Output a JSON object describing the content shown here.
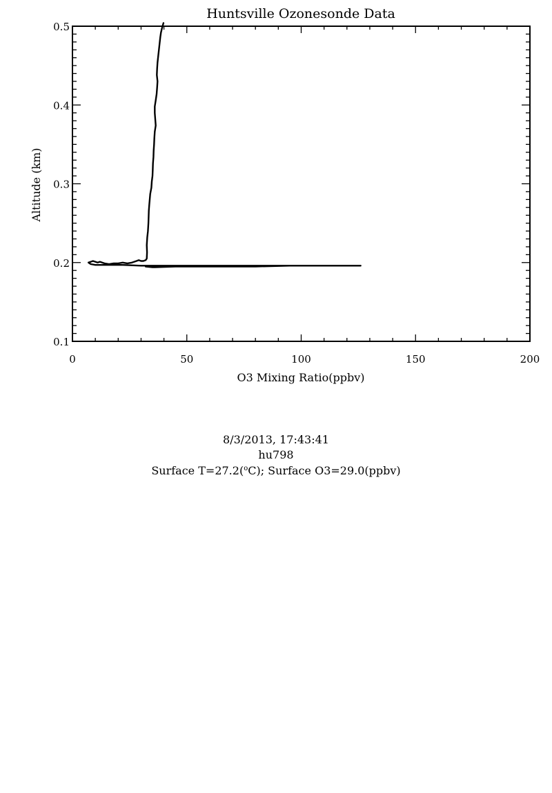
{
  "chart_data": {
    "type": "line",
    "title": "Huntsville Ozonesonde Data",
    "xlabel": "O3 Mixing Ratio(ppbv)",
    "ylabel": "Altitude (km)",
    "xlim": [
      0,
      200
    ],
    "ylim": [
      0.1,
      0.5
    ],
    "xticks": [
      0,
      50,
      100,
      150,
      200
    ],
    "yticks": [
      0.1,
      0.2,
      0.3,
      0.4,
      0.5
    ],
    "xtick_labels": [
      "0",
      "50",
      "100",
      "150",
      "200"
    ],
    "ytick_labels": [
      "0.1",
      "0.2",
      "0.3",
      "0.4",
      "0.5"
    ],
    "grid": false,
    "series": [
      {
        "x": [
          126,
          100,
          80,
          60,
          45,
          36,
          32,
          35,
          40,
          60,
          80,
          95,
          60,
          30,
          22,
          15,
          10,
          8,
          7,
          8,
          9,
          10,
          11,
          12,
          13,
          14,
          16,
          18,
          20,
          22,
          24,
          26,
          28,
          29,
          30,
          31,
          32,
          32.5,
          32.6,
          32.5,
          32.7,
          33,
          33.2,
          33.3,
          33.4,
          33.6,
          33.8,
          34,
          34.5,
          34.7,
          35,
          35.1,
          35.2,
          35.4,
          35.5,
          35.7,
          35.8,
          36,
          36.4,
          36.2,
          36,
          36,
          36.4,
          36.8,
          37,
          37.2,
          36.9,
          37,
          37.2,
          37.5,
          37.8,
          38.1,
          38.4,
          38.7,
          39.2,
          39.8
        ],
        "y": [
          0.196,
          0.196,
          0.196,
          0.196,
          0.195,
          0.194,
          0.195,
          0.194,
          0.195,
          0.195,
          0.195,
          0.196,
          0.196,
          0.196,
          0.197,
          0.197,
          0.197,
          0.198,
          0.2,
          0.201,
          0.202,
          0.201,
          0.2,
          0.201,
          0.2,
          0.199,
          0.198,
          0.199,
          0.199,
          0.2,
          0.199,
          0.2,
          0.202,
          0.203,
          0.202,
          0.202,
          0.203,
          0.205,
          0.213,
          0.222,
          0.232,
          0.24,
          0.25,
          0.258,
          0.266,
          0.274,
          0.28,
          0.287,
          0.295,
          0.303,
          0.31,
          0.318,
          0.326,
          0.334,
          0.342,
          0.35,
          0.358,
          0.366,
          0.374,
          0.382,
          0.39,
          0.398,
          0.406,
          0.414,
          0.422,
          0.43,
          0.438,
          0.446,
          0.454,
          0.462,
          0.47,
          0.478,
          0.486,
          0.492,
          0.498,
          0.504
        ]
      }
    ]
  },
  "info": {
    "datetime": "8/3/2013, 17:43:41",
    "station_id": "hu798",
    "surface_t_prefix": "Surface T=27.2(",
    "surface_t_unit_sup": "o",
    "surface_t_suffix": "C); Surface O3=29.0(ppbv)"
  }
}
